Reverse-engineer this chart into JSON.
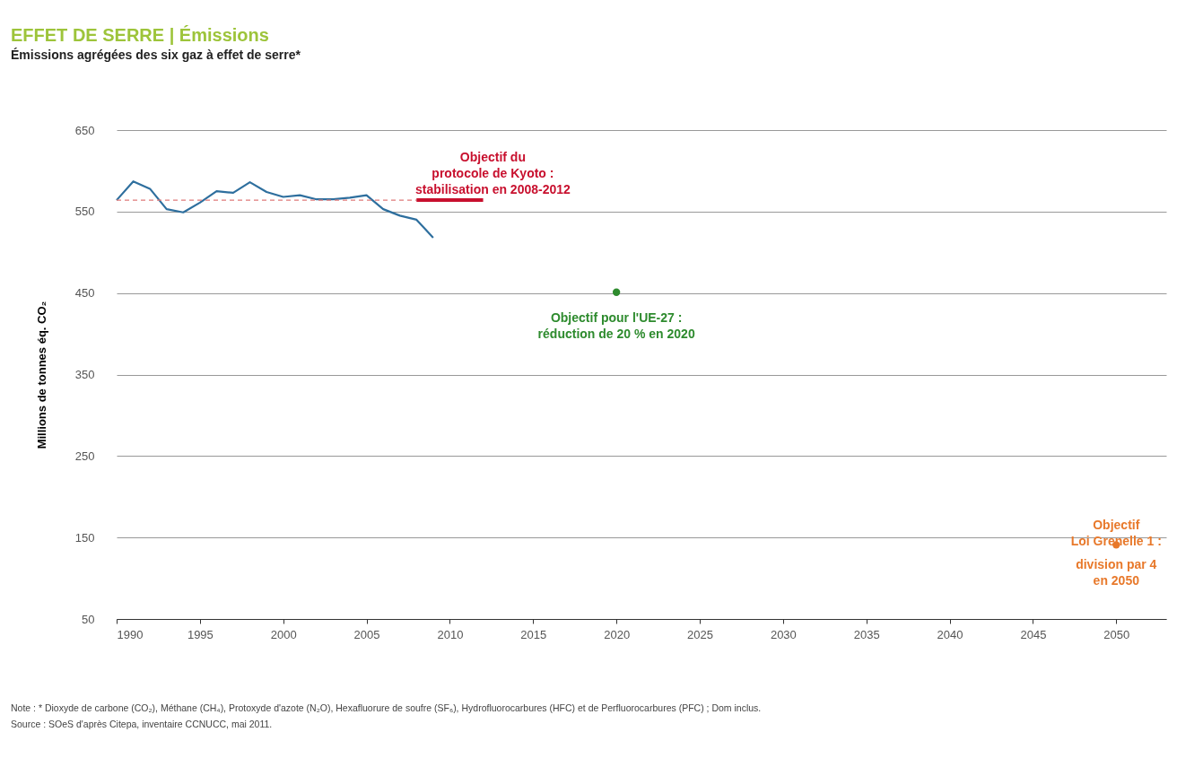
{
  "chart_data": {
    "type": "line",
    "title": "EFFET DE SERRE  |  Émissions",
    "subtitle": "Émissions agrégées des six gaz à effet de serre*",
    "ylabel": "Millions de tonnes éq. CO₂",
    "xlim": [
      1990,
      2053
    ],
    "xticks": [
      1990,
      1995,
      2000,
      2005,
      2010,
      2015,
      2020,
      2025,
      2030,
      2035,
      2040,
      2045,
      2050
    ],
    "ylim": [
      50,
      650
    ],
    "yticks": [
      50,
      150,
      250,
      350,
      450,
      550,
      650
    ],
    "grid": "y",
    "series": [
      {
        "color": "#2e6f9e",
        "line_style": "solid",
        "x": [
          1990,
          1991,
          1992,
          1993,
          1994,
          1995,
          1996,
          1997,
          1998,
          1999,
          2000,
          2001,
          2002,
          2003,
          2004,
          2005,
          2006,
          2007,
          2008,
          2009
        ],
        "values": [
          564,
          587,
          578,
          553,
          549,
          561,
          575,
          573,
          586,
          574,
          568,
          570,
          565,
          565,
          567,
          570,
          553,
          545,
          540,
          518
        ]
      },
      {
        "color": "#e07a7a",
        "line_style": "dashed",
        "x": [
          1990,
          2008
        ],
        "values": [
          564,
          564
        ]
      },
      {
        "color": "#c8102e",
        "line_style": "solid",
        "x": [
          2008,
          2012
        ],
        "values": [
          564,
          564
        ]
      },
      {
        "type": "scatter",
        "color": "#2e8b2e",
        "marker": "circle",
        "x": [
          2020
        ],
        "values": [
          451
        ]
      },
      {
        "type": "scatter",
        "color": "#e8792b",
        "marker": "circle",
        "x": [
          2050
        ],
        "values": [
          141
        ]
      }
    ],
    "annotations": [
      {
        "text": "Objectif du\nprotocole de Kyoto :\nstabilisation en 2008-2012",
        "x": 2010,
        "y": 564
      },
      {
        "text": "Objectif pour l'UE-27 :\nréduction de 20 % en 2020",
        "x": 2020,
        "y": 451
      },
      {
        "text": "Objectif\nLoi Grenelle 1 :",
        "x": 2050,
        "y": 141
      },
      {
        "text": "division par 4\nen 2050",
        "x": 2050,
        "y": 141
      },
      "Note : * Dioxyde de carbone (CO₂), Méthane (CH₄), Protoxyde d'azote (N₂O), Hexafluorure de soufre (SF₆), Hydrofluorocarbures (HFC) et de Perfluorocarbures (PFC) ; Dom inclus.",
      "Source : SOeS d'après Citepa, inventaire CCNUCC, mai 2011."
    ]
  }
}
